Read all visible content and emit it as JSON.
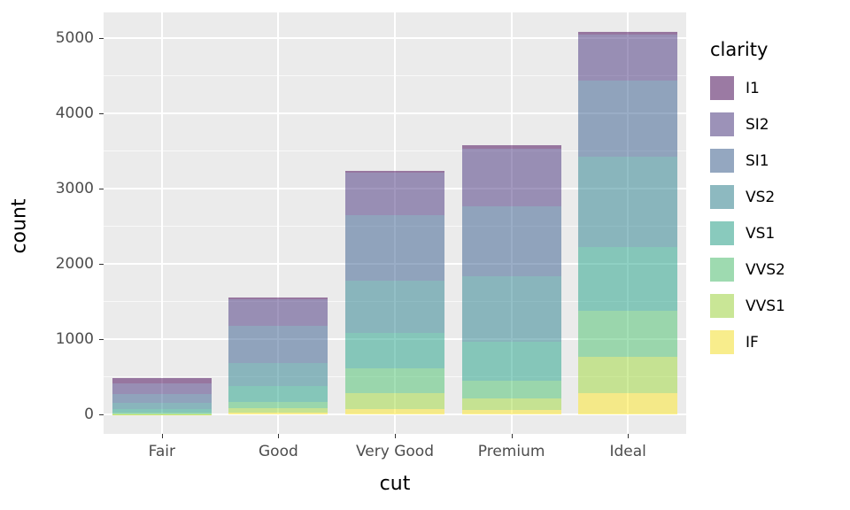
{
  "chart_data": {
    "type": "bar",
    "stacked": true,
    "title": "",
    "xlabel": "cut",
    "ylabel": "count",
    "categories": [
      "Fair",
      "Good",
      "Very Good",
      "Premium",
      "Ideal"
    ],
    "stack_order_bottom_to_top": [
      "IF",
      "VVS1",
      "VVS2",
      "VS1",
      "VS2",
      "SI1",
      "SI2",
      "I1"
    ],
    "series": [
      {
        "name": "I1",
        "color": "#440154",
        "values": [
          63,
          31,
          23,
          53,
          34
        ]
      },
      {
        "name": "SI2",
        "color": "#46327E",
        "values": [
          139,
          344,
          563,
          766,
          613
        ]
      },
      {
        "name": "SI1",
        "color": "#365C8D",
        "values": [
          122,
          496,
          869,
          929,
          1011
        ]
      },
      {
        "name": "VS2",
        "color": "#277F8E",
        "values": [
          78,
          311,
          695,
          873,
          1197
        ]
      },
      {
        "name": "VS1",
        "color": "#1FA187",
        "values": [
          51,
          206,
          476,
          517,
          847
        ]
      },
      {
        "name": "VVS2",
        "color": "#4AC16D",
        "values": [
          21,
          91,
          331,
          226,
          615
        ]
      },
      {
        "name": "VVS1",
        "color": "#A0DA39",
        "values": [
          5,
          59,
          212,
          160,
          483
        ]
      },
      {
        "name": "IF",
        "color": "#FDE725",
        "values": [
          3,
          23,
          72,
          60,
          286
        ]
      }
    ],
    "totals_estimated": [
      482,
      1561,
      3241,
      3584,
      5086
    ],
    "y_ticks": [
      0,
      1000,
      2000,
      3000,
      4000,
      5000
    ],
    "y_tick_labels": [
      "0",
      "1000",
      "2000",
      "3000",
      "4000",
      "5000"
    ],
    "y_minor_ticks": [
      500,
      1500,
      2500,
      3500,
      4500
    ],
    "ylim": [
      -255,
      5345
    ],
    "fill_alpha": 0.5,
    "grid": true,
    "legend": {
      "title": "clarity",
      "position": "right",
      "entries": [
        "I1",
        "SI2",
        "SI1",
        "VS2",
        "VS1",
        "VVS2",
        "VVS1",
        "IF"
      ]
    }
  },
  "panel": {
    "background": "#EBEBEB",
    "grid_major_color": "#FFFFFF",
    "grid_minor_color": "#FFFFFF"
  },
  "axis": {
    "x_title": "cut",
    "y_title": "count",
    "tick_mark_color": "#333333",
    "tick_text_color": "#4D4D4D",
    "title_color": "#000000"
  }
}
